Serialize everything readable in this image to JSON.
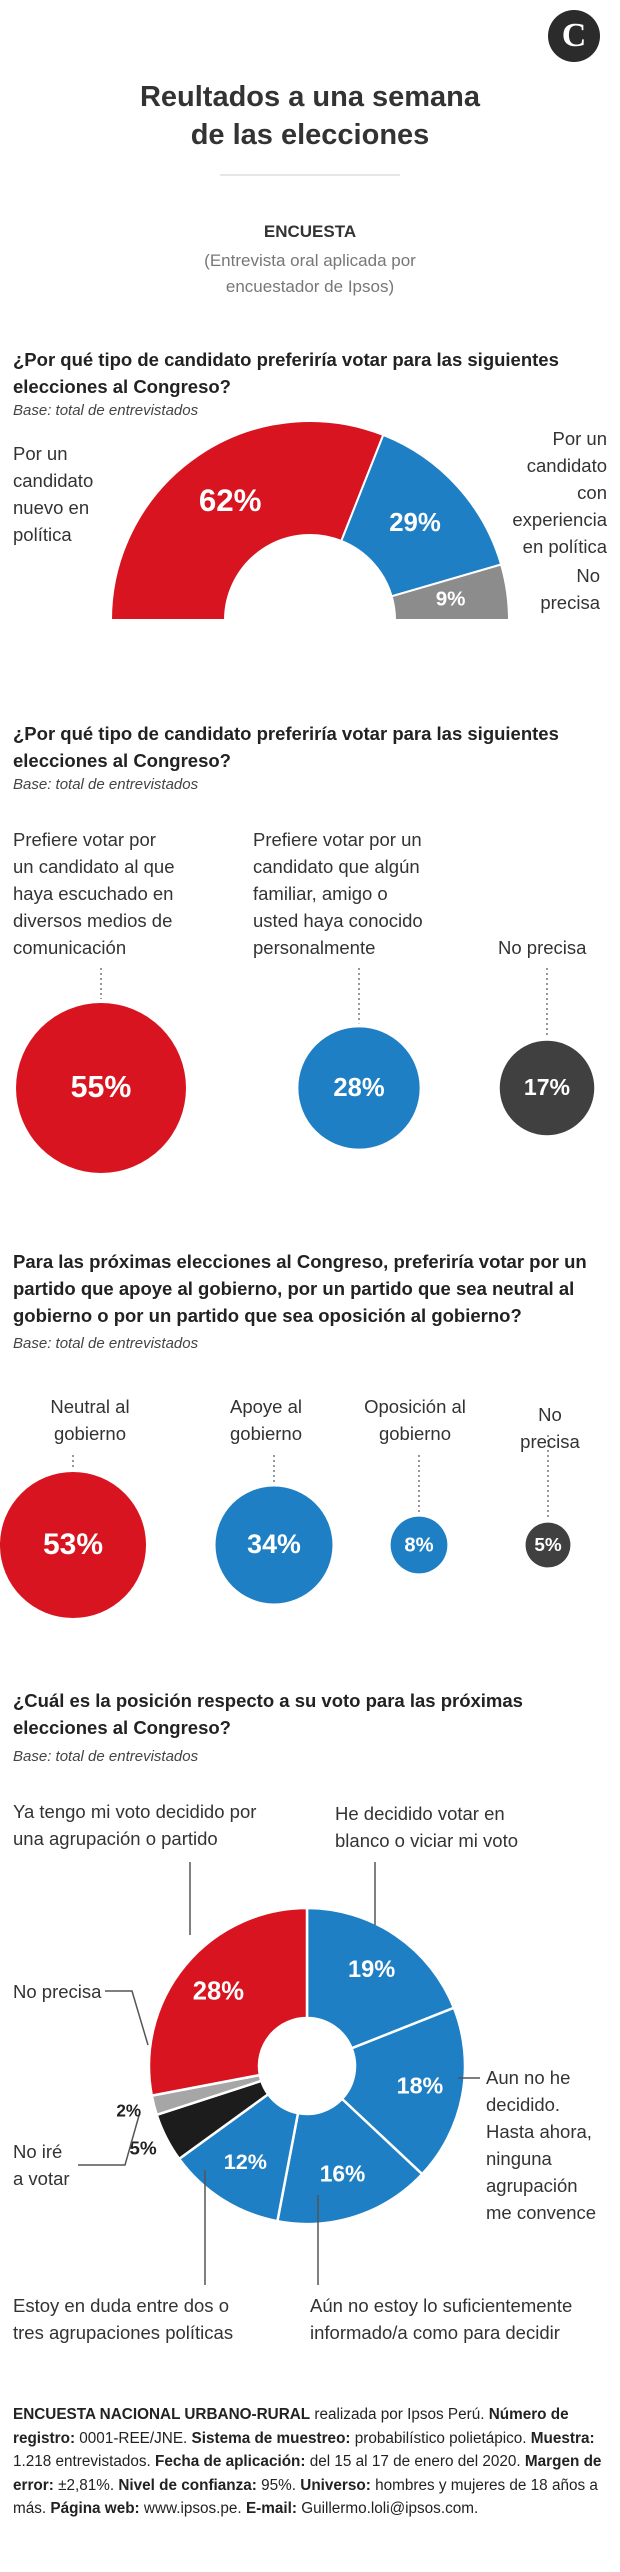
{
  "header": {
    "logo": "C",
    "title": "Reultados a una semana\nde las elecciones",
    "survey_label": "ENCUESTA",
    "survey_note": "(Entrevista oral aplicada por\nencuestador de Ipsos)"
  },
  "chart_data": [
    {
      "type": "semidonut",
      "title": "¿Por qué tipo de candidato preferiría votar para las siguientes elecciones al Congreso?",
      "subtitle": "Base: total de entrevistados",
      "categories": [
        "Por un\ncandidato\nnuevo en\npolítica",
        "Por un candidato\ncon experiencia\nen política",
        "No\nprecisa"
      ],
      "values": [
        62,
        29,
        9
      ],
      "value_labels": [
        "62%",
        "29%",
        "9%"
      ],
      "colors": [
        "#d7141f",
        "#1e7fc4",
        "#8c8c8c"
      ]
    },
    {
      "type": "bubbles",
      "title": "¿Por qué tipo de candidato preferiría votar para las siguientes elecciones al Congreso?",
      "subtitle": "Base: total de entrevistados",
      "categories": [
        "Prefiere votar por\nun candidato al que\nhaya escuchado en\ndiversos medios de\ncomunicación",
        "Prefiere votar por un\ncandidato que algún\nfamiliar, amigo o\nusted haya conocido\npersonalmente",
        "No precisa"
      ],
      "values": [
        55,
        28,
        17
      ],
      "value_labels": [
        "55%",
        "28%",
        "17%"
      ],
      "colors": [
        "#d7141f",
        "#1e7fc4",
        "#404040"
      ]
    },
    {
      "type": "bubbles",
      "title": "Para las próximas elecciones al Congreso, preferiría votar por un partido que apoye al gobierno, por un partido que sea neutral al gobierno o por un partido que sea oposición al gobierno?",
      "subtitle": "Base: total de entrevistados",
      "categories": [
        "Neutral al\ngobierno",
        "Apoye al\ngobierno",
        "Oposición al\ngobierno",
        "No precisa"
      ],
      "values": [
        53,
        34,
        8,
        5
      ],
      "value_labels": [
        "53%",
        "34%",
        "8%",
        "5%"
      ],
      "colors": [
        "#d7141f",
        "#1e7fc4",
        "#1e7fc4",
        "#404040"
      ]
    },
    {
      "type": "donut",
      "title": "¿Cuál es la posición respecto a su voto para las próximas elecciones al Congreso?",
      "subtitle": "Base: total de entrevistados",
      "categories": [
        "He decidido votar en\nblanco o viciar mi voto",
        "Aun no he\ndecidido.\nHasta ahora,\nninguna\nagrupación\nme convence",
        "Aún no estoy lo suficientemente\ninformado/a como para decidir",
        "Estoy en duda entre dos o\ntres agrupaciones políticas",
        "No iré\na votar",
        "No precisa",
        "Ya tengo mi voto decidido por\nuna agrupación o partido"
      ],
      "values": [
        19,
        18,
        16,
        12,
        5,
        2,
        28
      ],
      "value_labels": [
        "19%",
        "18%",
        "16%",
        "12%",
        "5%",
        "2%",
        "28%"
      ],
      "colors": [
        "#1e7fc4",
        "#1e7fc4",
        "#1e7fc4",
        "#1e7fc4",
        "#1c1c1c",
        "#a6a6a6",
        "#d7141f"
      ]
    }
  ],
  "footer": [
    {
      "label": "ENCUESTA NACIONAL URBANO-RURAL",
      "text": "realizada por Ipsos Perú."
    },
    {
      "label": "Número de registro:",
      "text": "0001-REE/JNE."
    },
    {
      "label": "Sistema de muestreo:",
      "text": "probabilístico polietápico."
    },
    {
      "label": "Muestra:",
      "text": "1.218 entrevistados."
    },
    {
      "label": "Fecha de aplicación:",
      "text": "del 15 al 17 de enero del 2020."
    },
    {
      "label": "Margen de error:",
      "text": "±2,81%."
    },
    {
      "label": "Nivel de confianza:",
      "text": "95%."
    },
    {
      "label": "Universo:",
      "text": "hombres y mujeres de 18 años a más."
    },
    {
      "label": "Página web:",
      "text": "www.ipsos.pe."
    },
    {
      "label": "E-mail:",
      "text": "Guillermo.loli@ipsos.com."
    }
  ]
}
